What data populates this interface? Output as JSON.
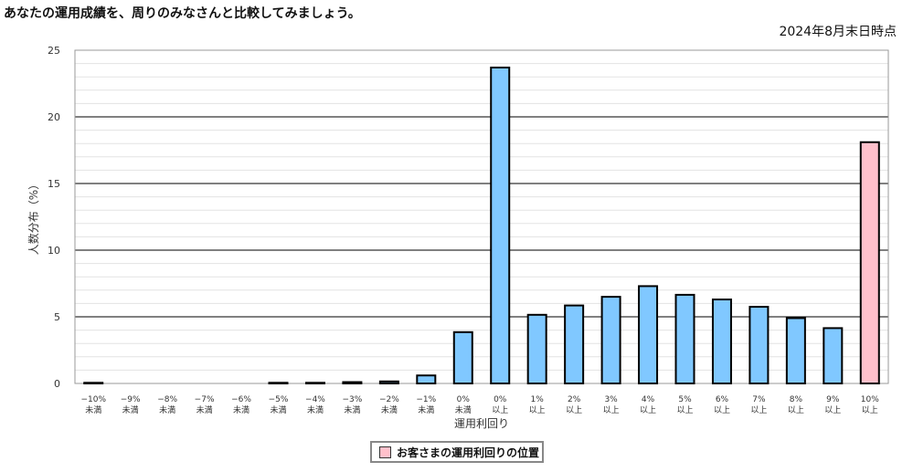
{
  "header": {
    "title": "あなたの運用成績を、周りのみなさんと比較してみましょう。",
    "as_of": "2024年8月末日時点"
  },
  "legend": {
    "label": "お客さまの運用利回りの位置",
    "color": "#FFC0CB"
  },
  "colors": {
    "bar": "#80C8FF",
    "highlight": "#FFC0CB",
    "stroke": "#000000"
  },
  "chart_data": {
    "type": "bar",
    "ylabel": "人数分布（%）",
    "xlabel": "運用利回り",
    "ylim": [
      0,
      25
    ],
    "yticks": [
      0,
      5,
      10,
      15,
      20,
      25
    ],
    "minor_grid_step": 1,
    "categories": [
      [
        "−10%",
        "未満"
      ],
      [
        "−9%",
        "未満"
      ],
      [
        "−8%",
        "未満"
      ],
      [
        "−7%",
        "未満"
      ],
      [
        "−6%",
        "未満"
      ],
      [
        "−5%",
        "未満"
      ],
      [
        "−4%",
        "未満"
      ],
      [
        "−3%",
        "未満"
      ],
      [
        "−2%",
        "未満"
      ],
      [
        "−1%",
        "未満"
      ],
      [
        "0%",
        "未満"
      ],
      [
        "0%",
        "以上"
      ],
      [
        "1%",
        "以上"
      ],
      [
        "2%",
        "以上"
      ],
      [
        "3%",
        "以上"
      ],
      [
        "4%",
        "以上"
      ],
      [
        "5%",
        "以上"
      ],
      [
        "6%",
        "以上"
      ],
      [
        "7%",
        "以上"
      ],
      [
        "8%",
        "以上"
      ],
      [
        "9%",
        "以上"
      ],
      [
        "10%",
        "以上"
      ]
    ],
    "values": [
      0.05,
      0,
      0,
      0,
      0,
      0.05,
      0.05,
      0.1,
      0.15,
      0.6,
      3.85,
      23.7,
      5.15,
      5.85,
      6.5,
      7.3,
      6.65,
      6.3,
      5.75,
      4.9,
      4.15,
      18.1
    ],
    "highlight_index": 21
  }
}
